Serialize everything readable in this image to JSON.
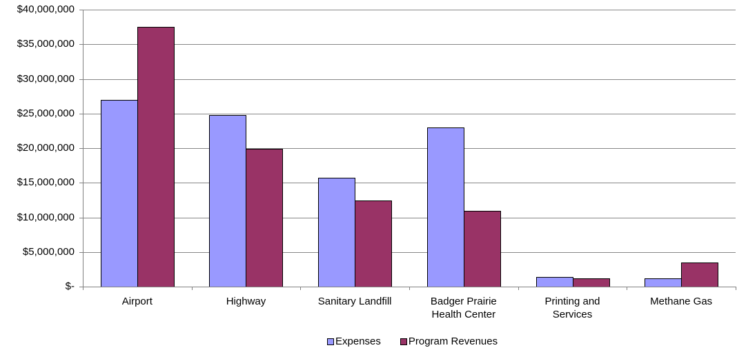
{
  "chart_data": {
    "type": "bar",
    "categories": [
      "Airport",
      "Highway",
      "Sanitary Landfill",
      "Badger Prairie\nHealth Center",
      "Printing and\nServices",
      "Methane Gas"
    ],
    "series": [
      {
        "name": "Expenses",
        "color": "#9999FF",
        "values": [
          27000000,
          24800000,
          15700000,
          23000000,
          1400000,
          1200000
        ]
      },
      {
        "name": "Program Revenues",
        "color": "#993366",
        "values": [
          37500000,
          19900000,
          12400000,
          10900000,
          1200000,
          3500000
        ]
      }
    ],
    "ylim": [
      0,
      40000000
    ],
    "yticks": [
      0,
      5000000,
      10000000,
      15000000,
      20000000,
      25000000,
      30000000,
      35000000,
      40000000
    ],
    "ytick_labels": [
      "$-",
      "$5,000,000",
      "$10,000,000",
      "$15,000,000",
      "$20,000,000",
      "$25,000,000",
      "$30,000,000",
      "$35,000,000",
      "$40,000,000"
    ],
    "grid": true,
    "legend": "bottom"
  }
}
